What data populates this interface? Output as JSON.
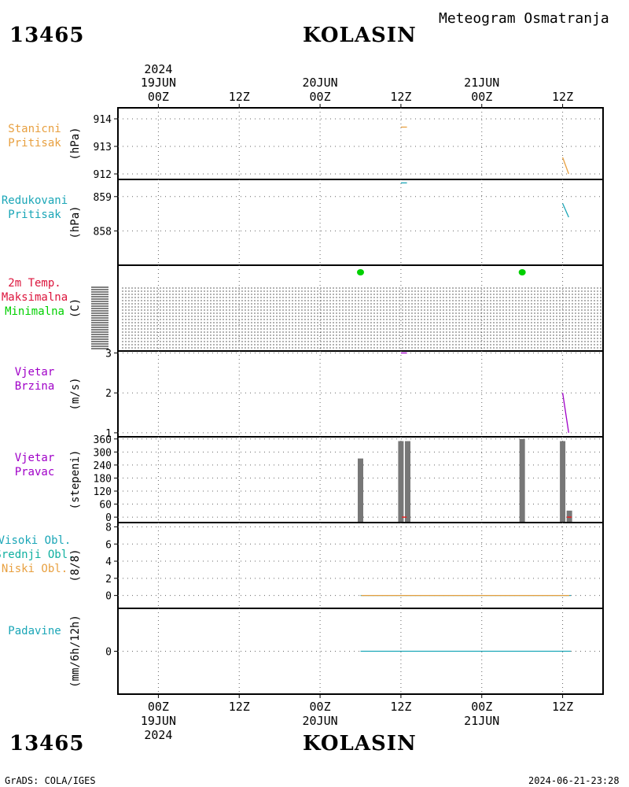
{
  "header": {
    "station_id": "13465",
    "station_name": "KOLASIN",
    "product": "Meteogram Osmatranja"
  },
  "footer": {
    "station_id": "13465",
    "station_name": "KOLASIN",
    "credit": "GrADS: COLA/IGES",
    "generated": "2024-06-21-23:28"
  },
  "time_axis": {
    "year": "2024",
    "hours": [
      "00Z",
      "12Z",
      "00Z",
      "12Z",
      "00Z",
      "12Z"
    ],
    "dates": [
      "19JUN",
      "20JUN",
      "21JUN"
    ],
    "date_at_hour_index": [
      0,
      2,
      4
    ],
    "year_at_hour_index": 0,
    "hour_range": [
      -6,
      66
    ],
    "tick_hours": [
      0,
      12,
      24,
      36,
      48,
      60
    ]
  },
  "colors": {
    "orange": "#e8a040",
    "cyan": "#1aa6b7",
    "crimson": "#dc143c",
    "green": "#00d000",
    "purple": "#a000c8",
    "gray": "#777777",
    "red": "#e82020",
    "teal": "#10b0a0"
  },
  "panel_labels": [
    {
      "lines": [
        "Stanicni",
        "Pritisak"
      ],
      "colors": [
        "#e8a040",
        "#e8a040"
      ],
      "unit": "(hPa)"
    },
    {
      "lines": [
        "Redukovani",
        "Pritisak"
      ],
      "colors": [
        "#1aa6b7",
        "#1aa6b7"
      ],
      "unit": "(hPa)"
    },
    {
      "lines": [
        "2m Temp.",
        "Maksimalna",
        "Minimalna"
      ],
      "colors": [
        "#dc143c",
        "#dc143c",
        "#00d000"
      ],
      "unit": "(C)"
    },
    {
      "lines": [
        "Vjetar",
        "Brzina"
      ],
      "colors": [
        "#a000c8",
        "#a000c8"
      ],
      "unit": "(m/s)"
    },
    {
      "lines": [
        "Vjetar",
        "Pravac"
      ],
      "colors": [
        "#a000c8",
        "#a000c8"
      ],
      "unit": "(stepeni)"
    },
    {
      "lines": [
        "Visoki Obl.",
        "Srednji Obl.",
        "Niski Obl."
      ],
      "colors": [
        "#1aa6b7",
        "#10b0a0",
        "#e8a040"
      ],
      "unit": "(8/8)"
    },
    {
      "lines": [
        "Padavine"
      ],
      "colors": [
        "#1aa6b7"
      ],
      "unit": "(mm/6h/12h)"
    }
  ],
  "chart_data": [
    {
      "type": "line",
      "panel": "station_pressure",
      "ylim": [
        911.8,
        914.4
      ],
      "yticks": [
        912,
        913,
        914
      ],
      "ylabel": "(hPa)",
      "series": [
        {
          "name": "Stanicni Pritisak",
          "color": "#e8a040",
          "points": [
            [
              36,
              913.7
            ],
            [
              36.9,
              913.7
            ]
          ]
        },
        {
          "name": "Stanicni Pritisak",
          "color": "#e8a040",
          "points": [
            [
              60,
              912.6
            ],
            [
              60.9,
              912.0
            ]
          ]
        }
      ]
    },
    {
      "type": "line",
      "panel": "reduced_pressure",
      "ylim": [
        857.0,
        859.5
      ],
      "yticks": [
        858,
        859
      ],
      "ylabel": "(hPa)",
      "series": [
        {
          "name": "Redukovani Pritisak",
          "color": "#1aa6b7",
          "points": [
            [
              36,
              859.4
            ],
            [
              36.9,
              859.4
            ]
          ]
        },
        {
          "name": "Redukovani Pritisak",
          "color": "#1aa6b7",
          "points": [
            [
              60,
              858.8
            ],
            [
              60.9,
              858.4
            ]
          ]
        }
      ]
    },
    {
      "type": "scatter",
      "panel": "temperature_2m",
      "ylabel": "(C)",
      "note": "axis unreadable (overlapping tick marks)",
      "series": [
        {
          "name": "Minimalna",
          "color": "#00d000",
          "points": [
            [
              30,
              0
            ],
            [
              54,
              0
            ]
          ]
        }
      ]
    },
    {
      "type": "line",
      "panel": "wind_speed",
      "ylim": [
        0.9,
        3.05
      ],
      "yticks": [
        1,
        2,
        3
      ],
      "ylabel": "(m/s)",
      "series": [
        {
          "name": "Vjetar Brzina",
          "color": "#a000c8",
          "points": [
            [
              36,
              3.0
            ],
            [
              36.9,
              3.0
            ]
          ]
        },
        {
          "name": "Vjetar Brzina",
          "color": "#a000c8",
          "points": [
            [
              60,
              2.0
            ],
            [
              60.9,
              1.0
            ]
          ]
        }
      ]
    },
    {
      "type": "bar",
      "panel": "wind_direction",
      "ylim": [
        -25,
        370
      ],
      "yticks": [
        0,
        60,
        120,
        180,
        240,
        300,
        360
      ],
      "ylabel": "(stepeni)",
      "bars": [
        {
          "hour": 30,
          "value": 270
        },
        {
          "hour": 36,
          "value": 350
        },
        {
          "hour": 37,
          "value": 350
        },
        {
          "hour": 54,
          "value": 360
        },
        {
          "hour": 60,
          "value": 350
        },
        {
          "hour": 61,
          "value": 30
        }
      ],
      "bar_color": "#777777",
      "markers": [
        {
          "hour": 36.5,
          "value": 0,
          "color": "#e82020"
        },
        {
          "hour": 61,
          "value": 0,
          "color": "#e82020"
        }
      ]
    },
    {
      "type": "line",
      "panel": "cloud_cover",
      "ylim": [
        -1.5,
        8.5
      ],
      "yticks": [
        0,
        2,
        4,
        6,
        8
      ],
      "ylabel": "(8/8)",
      "series": [
        {
          "name": "Visoki Obl.",
          "color": "#1aa6b7",
          "points": [
            [
              30,
              0
            ],
            [
              30.7,
              0
            ],
            [
              36,
              0
            ],
            [
              37.2,
              0
            ],
            [
              54,
              0
            ],
            [
              54.7,
              0
            ],
            [
              60,
              0
            ],
            [
              61.2,
              0
            ]
          ]
        },
        {
          "name": "Niski Obl.",
          "color": "#e8a040",
          "points": [
            [
              30.1,
              0
            ],
            [
              30.6,
              0
            ],
            [
              60.2,
              0
            ],
            [
              61,
              0
            ]
          ]
        }
      ]
    },
    {
      "type": "line",
      "panel": "precipitation",
      "ylim": [
        -5,
        5
      ],
      "yticks": [
        0
      ],
      "ylabel": "(mm/6h/12h)",
      "series": [
        {
          "name": "Padavine",
          "color": "#1aa6b7",
          "points": [
            [
              30,
              0
            ],
            [
              30.7,
              0
            ],
            [
              36,
              0
            ],
            [
              37.2,
              0
            ],
            [
              54,
              0
            ],
            [
              54.7,
              0
            ],
            [
              60,
              0
            ],
            [
              61.2,
              0
            ]
          ]
        }
      ]
    }
  ]
}
